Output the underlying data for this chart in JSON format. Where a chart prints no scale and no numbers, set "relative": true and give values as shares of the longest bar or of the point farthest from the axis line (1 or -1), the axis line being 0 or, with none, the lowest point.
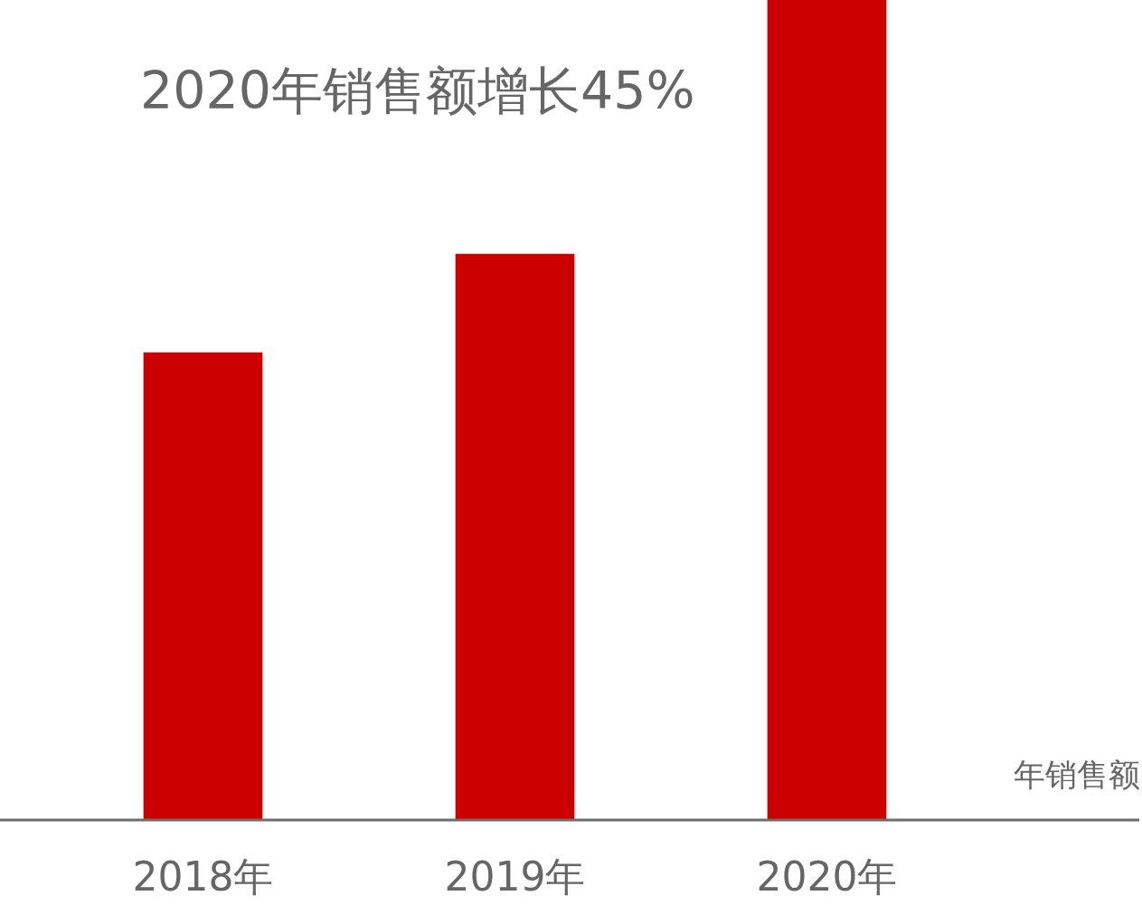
{
  "chart_data": {
    "type": "bar",
    "title": "2020年销售额增长45%",
    "xlabel": "年销售额",
    "categories": [
      "2018年",
      "2019年",
      "2020年"
    ],
    "values": [
      0.57,
      0.69,
      1
    ],
    "color": "#cc0000",
    "relative": true
  }
}
